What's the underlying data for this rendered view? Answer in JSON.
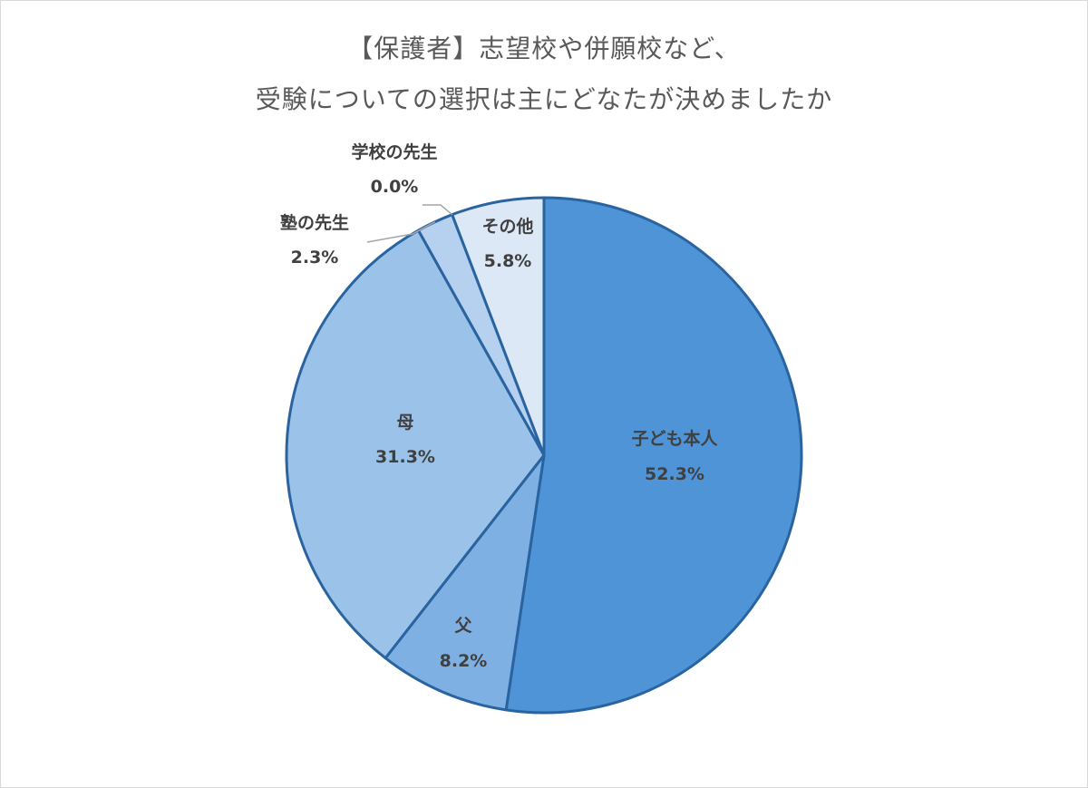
{
  "chart_data": {
    "type": "pie",
    "title_lines": [
      "【保護者】志望校や併願校など、",
      "受験についての選択は主にどなたが決めましたか"
    ],
    "slices": [
      {
        "name": "子ども本人",
        "value": 52.3,
        "label": "52.3%",
        "color": "#4e94d6"
      },
      {
        "name": "父",
        "value": 8.2,
        "label": "8.2%",
        "color": "#7eb0e3"
      },
      {
        "name": "母",
        "value": 31.3,
        "label": "31.3%",
        "color": "#9bc2e8"
      },
      {
        "name": "塾の先生",
        "value": 2.3,
        "label": "2.3%",
        "color": "#b6d1ef"
      },
      {
        "name": "学校の先生",
        "value": 0.0,
        "label": "0.0%",
        "color": "#c8dcf2"
      },
      {
        "name": "その他",
        "value": 5.8,
        "label": "5.8%",
        "color": "#dce8f6"
      }
    ],
    "border_color": "#2a64a0",
    "label_color": "#404040",
    "title_color": "#595959"
  }
}
